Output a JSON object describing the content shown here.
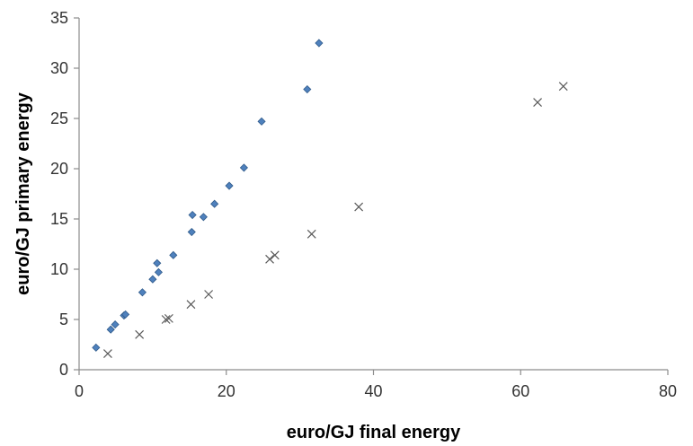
{
  "chart_data": {
    "type": "scatter",
    "title": "",
    "xlabel": "euro/GJ final energy",
    "ylabel": "euro/GJ primary energy",
    "xlim": [
      0,
      80
    ],
    "ylim": [
      0,
      35
    ],
    "xticks": [
      0,
      20,
      40,
      60,
      80
    ],
    "yticks": [
      0,
      5,
      10,
      15,
      20,
      25,
      30,
      35
    ],
    "grid": "none",
    "legend": "none",
    "series": [
      {
        "marker": "diamond",
        "color": "#4F81BD",
        "points": [
          [
            2.3,
            2.2
          ],
          [
            4.3,
            4.0
          ],
          [
            4.9,
            4.5
          ],
          [
            6.1,
            5.4
          ],
          [
            6.3,
            5.5
          ],
          [
            8.6,
            7.7
          ],
          [
            10.0,
            9.0
          ],
          [
            10.8,
            9.7
          ],
          [
            10.6,
            10.6
          ],
          [
            12.8,
            11.4
          ],
          [
            15.3,
            13.7
          ],
          [
            15.4,
            15.4
          ],
          [
            16.9,
            15.2
          ],
          [
            18.4,
            16.5
          ],
          [
            20.4,
            18.3
          ],
          [
            22.4,
            20.1
          ],
          [
            24.8,
            24.7
          ],
          [
            31.0,
            27.9
          ],
          [
            32.6,
            32.5
          ]
        ]
      },
      {
        "marker": "x",
        "color": "#595959",
        "points": [
          [
            3.9,
            1.6
          ],
          [
            8.2,
            3.5
          ],
          [
            11.8,
            5.0
          ],
          [
            12.2,
            5.1
          ],
          [
            15.2,
            6.5
          ],
          [
            17.6,
            7.5
          ],
          [
            25.9,
            11.0
          ],
          [
            26.6,
            11.4
          ],
          [
            31.6,
            13.5
          ],
          [
            38.0,
            16.2
          ],
          [
            62.3,
            26.6
          ],
          [
            65.8,
            28.2
          ]
        ]
      }
    ]
  }
}
